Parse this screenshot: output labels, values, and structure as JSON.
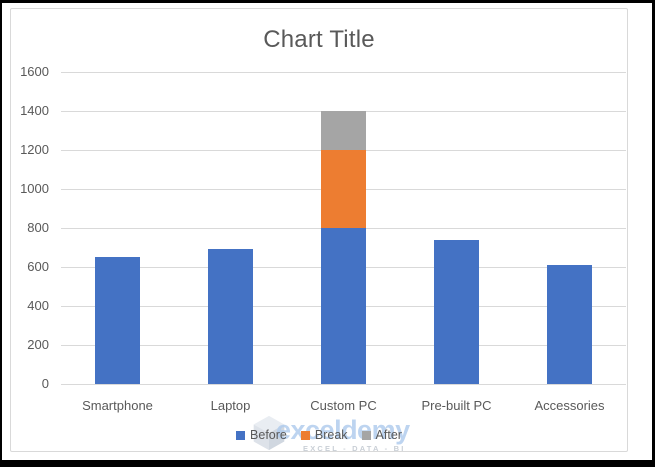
{
  "chart_data": {
    "type": "bar",
    "stacked": true,
    "title": "Chart Title",
    "categories": [
      "Smartphone",
      "Laptop",
      "Custom PC",
      "Pre-built PC",
      "Accessories"
    ],
    "series": [
      {
        "name": "Before",
        "color": "#4472C4",
        "values": [
          650,
          690,
          800,
          740,
          610
        ]
      },
      {
        "name": "Break",
        "color": "#ED7D31",
        "values": [
          0,
          0,
          400,
          0,
          0
        ]
      },
      {
        "name": "After",
        "color": "#A5A5A5",
        "values": [
          0,
          0,
          200,
          0,
          0
        ]
      }
    ],
    "y_axis": {
      "min": 0,
      "max": 1600,
      "step": 200,
      "tick_labels": [
        "0",
        "200",
        "400",
        "600",
        "800",
        "1000",
        "1200",
        "1400",
        "1600"
      ]
    },
    "xlabel": "",
    "ylabel": "",
    "legend_position": "bottom",
    "grid": true
  },
  "watermark": {
    "logo_text": "exceldemy",
    "tagline": "EXCEL - DATA - BI"
  },
  "colors": {
    "grid": "#D9D9D9",
    "axis_text": "#595959",
    "title_text": "#595959",
    "chart_border": "#D9D9D9",
    "frame": "#000000",
    "watermark_blue": "#B2CDEE",
    "watermark_gray": "#C9CFD6"
  }
}
